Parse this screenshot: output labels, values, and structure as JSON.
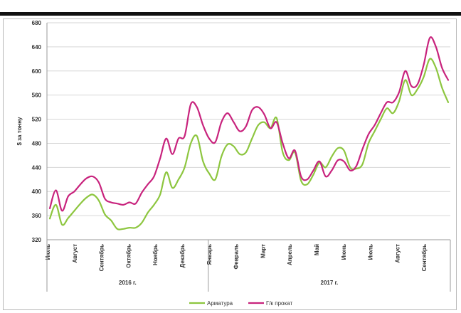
{
  "chart_data": {
    "type": "line",
    "title": "",
    "ylabel": "$ за тонну",
    "ylim": [
      320,
      680
    ],
    "yticks": [
      320,
      360,
      400,
      440,
      480,
      520,
      560,
      600,
      640,
      680
    ],
    "grid": "horizontal",
    "legend_position": "bottom-center",
    "month_labels": [
      "Июль",
      "Август",
      "Сентябрь",
      "Октябрь",
      "Ноябрь",
      "Декабрь",
      "Январь",
      "Февраль",
      "Март",
      "Апрель",
      "Май",
      "Июнь",
      "Июль",
      "Август",
      "Сентябрь"
    ],
    "year_labels": [
      {
        "label": "2016 г.",
        "months": [
          0,
          5
        ]
      },
      {
        "label": "2017 г.",
        "months": [
          6,
          14
        ]
      }
    ],
    "series": [
      {
        "name": "Арматура",
        "color": "#8dc63f",
        "values": [
          355,
          378,
          345,
          356,
          368,
          380,
          390,
          395,
          385,
          362,
          352,
          338,
          338,
          340,
          340,
          348,
          365,
          378,
          395,
          432,
          406,
          420,
          440,
          480,
          492,
          450,
          430,
          420,
          458,
          478,
          475,
          462,
          465,
          488,
          510,
          515,
          505,
          522,
          465,
          452,
          465,
          418,
          412,
          428,
          448,
          440,
          458,
          472,
          468,
          440,
          438,
          445,
          480,
          500,
          520,
          538,
          530,
          550,
          585,
          560,
          570,
          590,
          620,
          605,
          572,
          548
        ]
      },
      {
        "name": "Г/к прокат",
        "color": "#c8237d",
        "values": [
          372,
          402,
          368,
          392,
          400,
          412,
          422,
          425,
          415,
          388,
          382,
          380,
          378,
          382,
          380,
          398,
          412,
          425,
          455,
          488,
          462,
          488,
          492,
          545,
          540,
          510,
          488,
          482,
          515,
          530,
          515,
          500,
          508,
          535,
          540,
          528,
          505,
          515,
          480,
          455,
          468,
          425,
          420,
          435,
          450,
          425,
          435,
          452,
          450,
          435,
          442,
          470,
          495,
          510,
          530,
          548,
          548,
          565,
          600,
          575,
          578,
          610,
          655,
          640,
          605,
          585
        ]
      }
    ]
  }
}
